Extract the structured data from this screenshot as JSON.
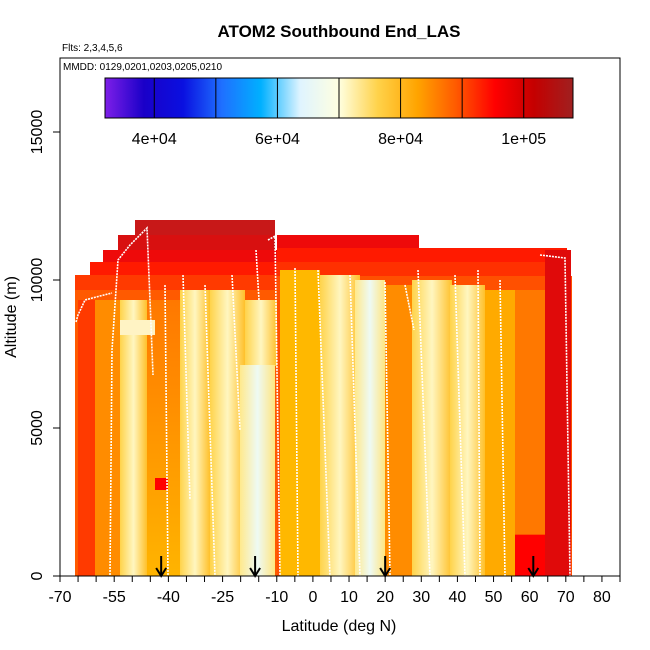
{
  "chart_data": {
    "type": "heatmap",
    "title": "ATOM2 Southbound End_LAS",
    "flights_note": "Flts: 2,3,4,5,6",
    "dates_note": "MMDD: 0129,0201,0203,0205,0210",
    "xlabel": "Latitude (deg N)",
    "ylabel": "Altitude (m)",
    "xlim": [
      -70,
      85
    ],
    "ylim": [
      0,
      17500
    ],
    "x_ticks": [
      -70,
      -55,
      -40,
      -25,
      -10,
      0,
      10,
      20,
      30,
      40,
      50,
      60,
      70,
      80
    ],
    "x_tick_labels": [
      "-70",
      "-55",
      "-40",
      "-25",
      "-10",
      "0",
      "10",
      "20",
      "30",
      "40",
      "50",
      "60",
      "70",
      "80"
    ],
    "y_ticks": [
      0,
      5000,
      10000,
      15000
    ],
    "y_tick_labels": [
      "0",
      "5000",
      "10000",
      "15000"
    ],
    "colorbar": {
      "range": [
        32000,
        108000
      ],
      "ticks": [
        40000,
        60000,
        80000,
        100000
      ],
      "tick_labels": [
        "4e+04",
        "6e+04",
        "8e+04",
        "1e+05"
      ],
      "stops": [
        "#7e1fe8",
        "#1a00c8",
        "#0a10e0",
        "#1f70ff",
        "#00b0ff",
        "#dff4ff",
        "#ffffe0",
        "#ffd24a",
        "#ffa400",
        "#ff5a00",
        "#ff0000",
        "#c40000",
        "#a02020"
      ]
    },
    "arrows_latitude": [
      -42,
      -16,
      20,
      61
    ],
    "grid": false,
    "legend": "colorbar-top"
  }
}
